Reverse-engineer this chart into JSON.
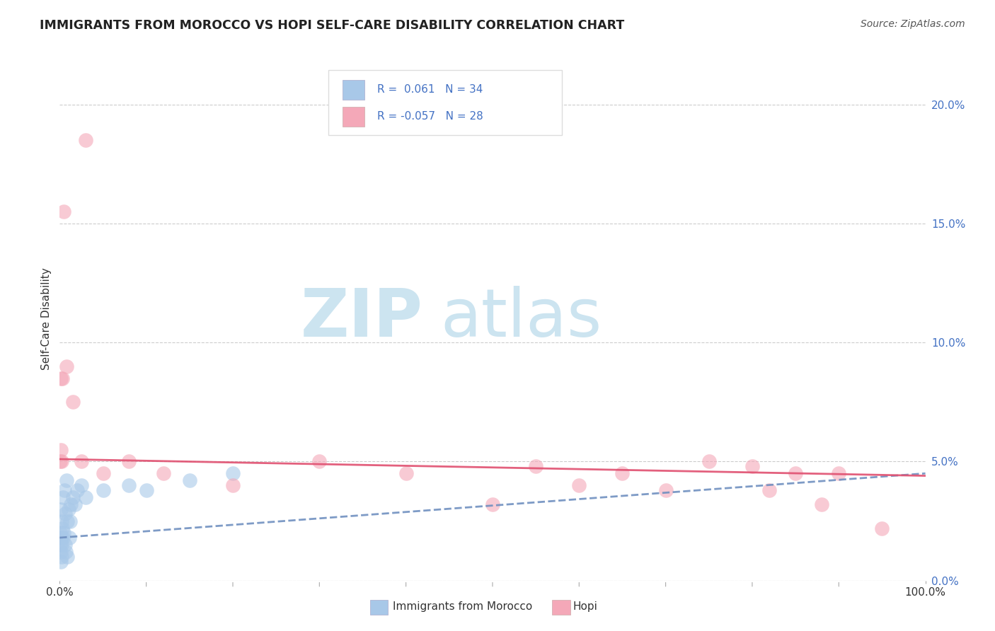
{
  "title": "IMMIGRANTS FROM MOROCCO VS HOPI SELF-CARE DISABILITY CORRELATION CHART",
  "source": "Source: ZipAtlas.com",
  "ylabel": "Self-Care Disability",
  "xlim": [
    0,
    100
  ],
  "ylim": [
    0,
    22
  ],
  "ytick_vals": [
    0,
    5,
    10,
    15,
    20
  ],
  "ytick_labels": [
    "0.0%",
    "5.0%",
    "10.0%",
    "15.0%",
    "20.0%"
  ],
  "grid_color": "#cccccc",
  "background_color": "#ffffff",
  "blue_dot_color": "#a8c8e8",
  "pink_dot_color": "#f4a8b8",
  "blue_line_color": "#7090c0",
  "pink_line_color": "#e05070",
  "watermark_color": "#cce4f0",
  "legend_R_blue": "0.061",
  "legend_N_blue": "34",
  "legend_R_pink": "-0.057",
  "legend_N_pink": "28",
  "legend_text_color": "#4472c4",
  "title_color": "#222222",
  "source_color": "#555555",
  "ylabel_color": "#333333",
  "blue_trend_start_y": 1.8,
  "blue_trend_end_y": 4.5,
  "pink_trend_start_y": 5.1,
  "pink_trend_end_y": 4.4,
  "blue_scatter_x": [
    0.05,
    0.08,
    0.1,
    0.12,
    0.15,
    0.18,
    0.2,
    0.22,
    0.25,
    0.3,
    0.35,
    0.4,
    0.5,
    0.55,
    0.6,
    0.65,
    0.7,
    0.8,
    0.85,
    0.9,
    1.0,
    1.1,
    1.2,
    1.3,
    1.5,
    1.8,
    2.0,
    2.5,
    3.0,
    5.0,
    8.0,
    10.0,
    15.0,
    20.0
  ],
  "blue_scatter_y": [
    1.5,
    2.0,
    1.2,
    3.0,
    0.8,
    1.8,
    2.5,
    1.0,
    1.5,
    2.2,
    1.8,
    3.5,
    2.0,
    3.8,
    1.5,
    2.8,
    1.2,
    4.2,
    2.5,
    1.0,
    3.0,
    1.8,
    2.5,
    3.2,
    3.5,
    3.2,
    3.8,
    4.0,
    3.5,
    3.8,
    4.0,
    3.8,
    4.2,
    4.5
  ],
  "pink_scatter_x": [
    0.05,
    0.1,
    0.15,
    0.2,
    0.3,
    0.5,
    0.8,
    1.5,
    2.5,
    3.0,
    5.0,
    8.0,
    12.0,
    20.0,
    30.0,
    40.0,
    50.0,
    55.0,
    60.0,
    65.0,
    70.0,
    75.0,
    80.0,
    82.0,
    85.0,
    88.0,
    90.0,
    95.0
  ],
  "pink_scatter_y": [
    5.0,
    8.5,
    5.5,
    5.0,
    8.5,
    15.5,
    9.0,
    7.5,
    5.0,
    18.5,
    4.5,
    5.0,
    4.5,
    4.0,
    5.0,
    4.5,
    3.2,
    4.8,
    4.0,
    4.5,
    3.8,
    5.0,
    4.8,
    3.8,
    4.5,
    3.2,
    4.5,
    2.2
  ]
}
